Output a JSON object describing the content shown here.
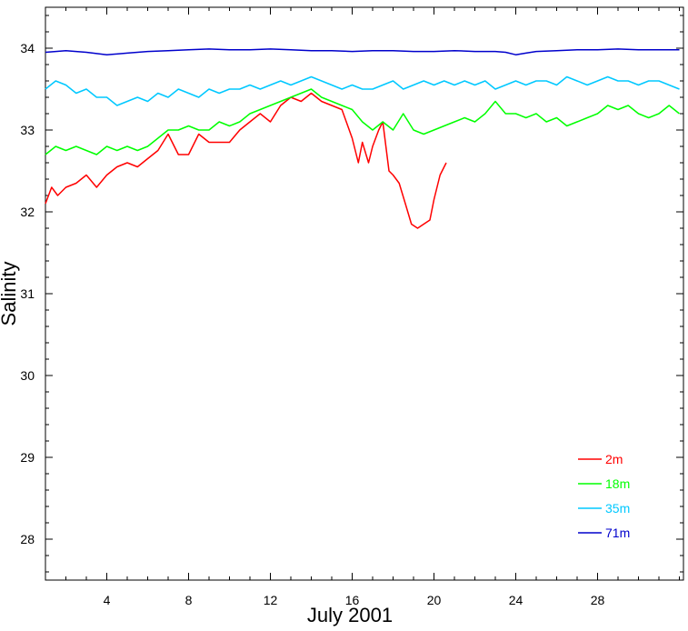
{
  "chart_data": {
    "type": "line",
    "title": "",
    "xlabel": "July 2001",
    "ylabel": "Salinity",
    "xlim": [
      1,
      32.2
    ],
    "ylim": [
      27.5,
      34.5
    ],
    "x_ticks": [
      4,
      8,
      12,
      16,
      20,
      24,
      28
    ],
    "y_ticks": [
      28,
      29,
      30,
      31,
      32,
      33,
      34
    ],
    "grid": false,
    "legend_position": "bottom-right",
    "series": [
      {
        "name": "2m",
        "color": "#ff0000",
        "x": [
          1.0,
          1.3,
          1.6,
          2.0,
          2.5,
          3.0,
          3.5,
          4.0,
          4.5,
          5.0,
          5.5,
          6.0,
          6.5,
          7.0,
          7.5,
          8.0,
          8.5,
          9.0,
          9.5,
          10.0,
          10.5,
          11.0,
          11.5,
          12.0,
          12.5,
          13.0,
          13.5,
          14.0,
          14.5,
          15.0,
          15.5,
          16.0,
          16.3,
          16.5,
          16.8,
          17.0,
          17.3,
          17.5,
          17.8,
          18.0,
          18.3,
          18.6,
          18.9,
          19.2,
          19.5,
          19.8,
          20.0,
          20.3,
          20.6
        ],
        "y": [
          32.1,
          32.3,
          32.2,
          32.3,
          32.35,
          32.45,
          32.3,
          32.45,
          32.55,
          32.6,
          32.55,
          32.65,
          32.75,
          32.95,
          32.7,
          32.7,
          32.95,
          32.85,
          32.85,
          32.85,
          33.0,
          33.1,
          33.2,
          33.1,
          33.3,
          33.4,
          33.35,
          33.45,
          33.35,
          33.3,
          33.25,
          32.9,
          32.6,
          32.85,
          32.6,
          32.8,
          33.0,
          33.1,
          32.5,
          32.45,
          32.35,
          32.1,
          31.85,
          31.8,
          31.85,
          31.9,
          32.15,
          32.45,
          32.6
        ]
      },
      {
        "name": "18m",
        "color": "#00ff00",
        "x": [
          1.0,
          1.5,
          2.0,
          2.5,
          3.0,
          3.5,
          4.0,
          4.5,
          5.0,
          5.5,
          6.0,
          6.5,
          7.0,
          7.5,
          8.0,
          8.5,
          9.0,
          9.5,
          10.0,
          10.5,
          11.0,
          11.5,
          12.0,
          12.5,
          13.0,
          13.5,
          14.0,
          14.5,
          15.0,
          15.5,
          16.0,
          16.5,
          17.0,
          17.5,
          18.0,
          18.5,
          19.0,
          19.5,
          20.0,
          20.5,
          21.0,
          21.5,
          22.0,
          22.5,
          23.0,
          23.5,
          24.0,
          24.5,
          25.0,
          25.5,
          26.0,
          26.5,
          27.0,
          27.5,
          28.0,
          28.5,
          29.0,
          29.5,
          30.0,
          30.5,
          31.0,
          31.5,
          32.0
        ],
        "y": [
          32.7,
          32.8,
          32.75,
          32.8,
          32.75,
          32.7,
          32.8,
          32.75,
          32.8,
          32.75,
          32.8,
          32.9,
          33.0,
          33.0,
          33.05,
          33.0,
          33.0,
          33.1,
          33.05,
          33.1,
          33.2,
          33.25,
          33.3,
          33.35,
          33.4,
          33.45,
          33.5,
          33.4,
          33.35,
          33.3,
          33.25,
          33.1,
          33.0,
          33.1,
          33.0,
          33.2,
          33.0,
          32.95,
          33.0,
          33.05,
          33.1,
          33.15,
          33.1,
          33.2,
          33.35,
          33.2,
          33.2,
          33.15,
          33.2,
          33.1,
          33.15,
          33.05,
          33.1,
          33.15,
          33.2,
          33.3,
          33.25,
          33.3,
          33.2,
          33.15,
          33.2,
          33.3,
          33.2
        ]
      },
      {
        "name": "35m",
        "color": "#00c8ff",
        "x": [
          1.0,
          1.5,
          2.0,
          2.5,
          3.0,
          3.5,
          4.0,
          4.5,
          5.0,
          5.5,
          6.0,
          6.5,
          7.0,
          7.5,
          8.0,
          8.5,
          9.0,
          9.5,
          10.0,
          10.5,
          11.0,
          11.5,
          12.0,
          12.5,
          13.0,
          13.5,
          14.0,
          14.5,
          15.0,
          15.5,
          16.0,
          16.5,
          17.0,
          17.5,
          18.0,
          18.5,
          19.0,
          19.5,
          20.0,
          20.5,
          21.0,
          21.5,
          22.0,
          22.5,
          23.0,
          23.5,
          24.0,
          24.5,
          25.0,
          25.5,
          26.0,
          26.5,
          27.0,
          27.5,
          28.0,
          28.5,
          29.0,
          29.5,
          30.0,
          30.5,
          31.0,
          31.5,
          32.0
        ],
        "y": [
          33.5,
          33.6,
          33.55,
          33.45,
          33.5,
          33.4,
          33.4,
          33.3,
          33.35,
          33.4,
          33.35,
          33.45,
          33.4,
          33.5,
          33.45,
          33.4,
          33.5,
          33.45,
          33.5,
          33.5,
          33.55,
          33.5,
          33.55,
          33.6,
          33.55,
          33.6,
          33.65,
          33.6,
          33.55,
          33.5,
          33.55,
          33.5,
          33.5,
          33.55,
          33.6,
          33.5,
          33.55,
          33.6,
          33.55,
          33.6,
          33.55,
          33.6,
          33.55,
          33.6,
          33.5,
          33.55,
          33.6,
          33.55,
          33.6,
          33.6,
          33.55,
          33.65,
          33.6,
          33.55,
          33.6,
          33.65,
          33.6,
          33.6,
          33.55,
          33.6,
          33.6,
          33.55,
          33.5
        ]
      },
      {
        "name": "71m",
        "color": "#0000cc",
        "x": [
          1.0,
          1.5,
          2.0,
          3.0,
          4.0,
          5.0,
          6.0,
          7.0,
          8.0,
          9.0,
          10.0,
          11.0,
          12.0,
          13.0,
          14.0,
          15.0,
          16.0,
          17.0,
          18.0,
          19.0,
          20.0,
          21.0,
          22.0,
          23.0,
          23.5,
          24.0,
          24.5,
          25.0,
          26.0,
          27.0,
          28.0,
          29.0,
          30.0,
          31.0,
          32.0
        ],
        "y": [
          33.95,
          33.96,
          33.97,
          33.95,
          33.92,
          33.94,
          33.96,
          33.97,
          33.98,
          33.99,
          33.98,
          33.98,
          33.99,
          33.98,
          33.97,
          33.97,
          33.96,
          33.97,
          33.97,
          33.96,
          33.96,
          33.97,
          33.96,
          33.96,
          33.95,
          33.92,
          33.94,
          33.96,
          33.97,
          33.98,
          33.98,
          33.99,
          33.98,
          33.98,
          33.98
        ]
      }
    ]
  }
}
